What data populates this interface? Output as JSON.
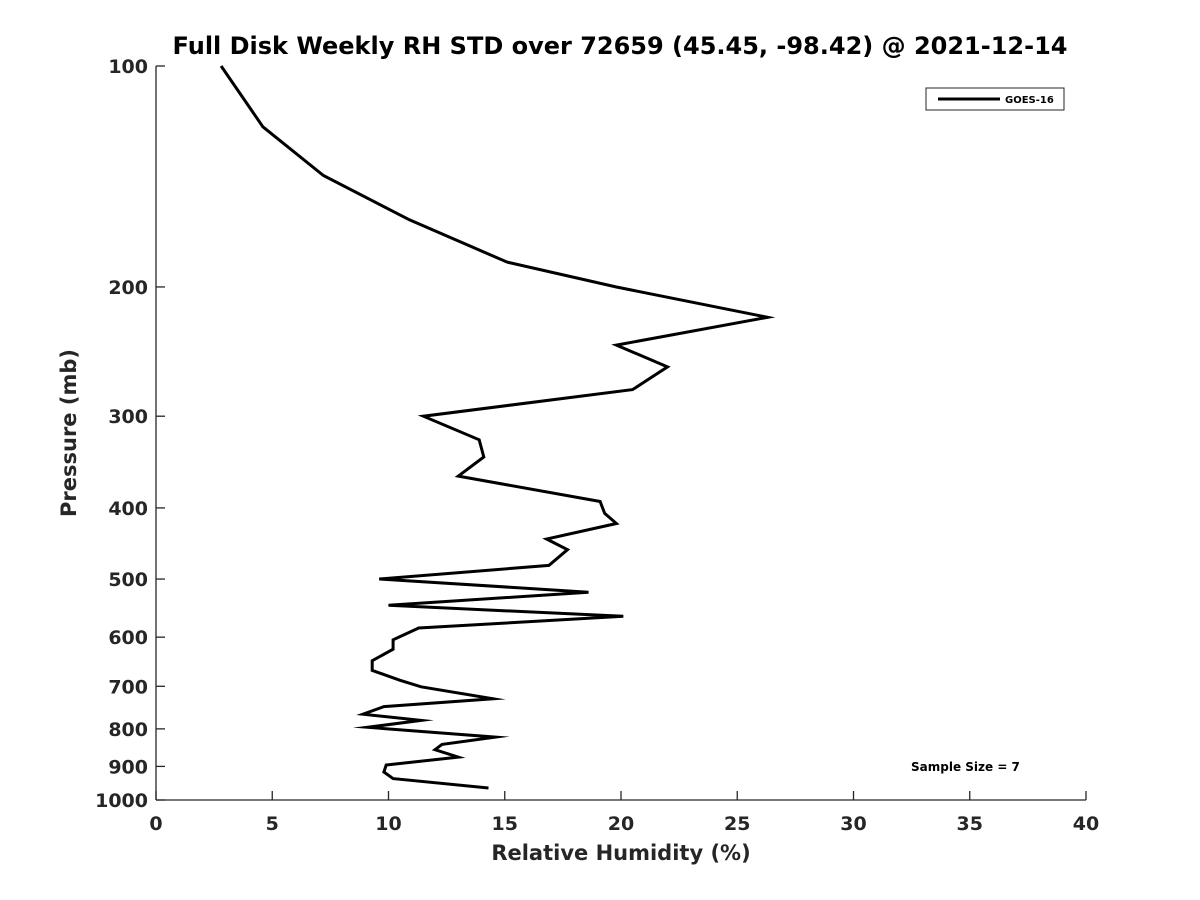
{
  "chart_data": {
    "type": "line",
    "title": "Full Disk Weekly RH STD over 72659 (45.45, -98.42) @ 2021-12-14",
    "xlabel": "Relative Humidity (%)",
    "ylabel": "Pressure (mb)",
    "xlim": [
      0,
      40
    ],
    "ylim": [
      100,
      1000
    ],
    "yscale": "log",
    "yreversed": true,
    "grid": false,
    "legend_position": "top-right",
    "x_ticks": [
      0,
      5,
      10,
      15,
      20,
      25,
      30,
      35,
      40
    ],
    "x_tick_labels": [
      "0",
      "5",
      "10",
      "15",
      "20",
      "25",
      "30",
      "35",
      "40"
    ],
    "y_ticks": [
      100,
      200,
      300,
      400,
      500,
      600,
      700,
      800,
      900,
      1000
    ],
    "y_tick_labels": [
      "100",
      "200",
      "300",
      "400",
      "500",
      "600",
      "700",
      "800",
      "900",
      "1000"
    ],
    "annotation": "Sample Size = 7",
    "series": [
      {
        "name": "GOES-16",
        "color": "#000000",
        "points": [
          [
            2.8,
            100
          ],
          [
            4.6,
            121
          ],
          [
            7.2,
            141
          ],
          [
            10.9,
            162
          ],
          [
            15.1,
            185
          ],
          [
            19.8,
            200
          ],
          [
            26.3,
            220
          ],
          [
            19.8,
            240
          ],
          [
            22.0,
            257
          ],
          [
            20.5,
            276
          ],
          [
            11.5,
            300
          ],
          [
            13.9,
            323
          ],
          [
            14.1,
            341
          ],
          [
            13.0,
            362
          ],
          [
            19.1,
            392
          ],
          [
            19.3,
            407
          ],
          [
            19.8,
            420
          ],
          [
            16.8,
            441
          ],
          [
            17.7,
            456
          ],
          [
            16.9,
            479
          ],
          [
            9.6,
            500
          ],
          [
            18.6,
            521
          ],
          [
            10.0,
            543
          ],
          [
            20.1,
            562
          ],
          [
            11.3,
            583
          ],
          [
            10.2,
            605
          ],
          [
            10.2,
            623
          ],
          [
            9.3,
            646
          ],
          [
            9.3,
            666
          ],
          [
            10.5,
            687
          ],
          [
            11.4,
            701
          ],
          [
            14.5,
            728
          ],
          [
            9.8,
            746
          ],
          [
            8.9,
            764
          ],
          [
            11.4,
            779
          ],
          [
            9.1,
            796
          ],
          [
            14.6,
            821
          ],
          [
            12.3,
            840
          ],
          [
            12.0,
            854
          ],
          [
            13.0,
            874
          ],
          [
            9.9,
            896
          ],
          [
            9.8,
            916
          ],
          [
            10.2,
            935
          ],
          [
            14.3,
            963
          ]
        ]
      }
    ]
  }
}
